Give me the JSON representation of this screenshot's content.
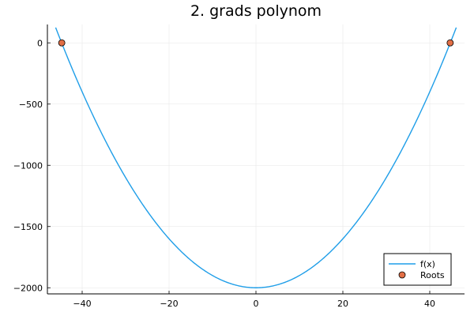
{
  "chart_data": {
    "type": "line",
    "title": "2. grads polynom",
    "xlabel": "",
    "ylabel": "",
    "xlim": [
      -48,
      48
    ],
    "ylim": [
      -2050,
      150
    ],
    "grid": true,
    "legend_position": "bottom-right",
    "x_ticks": [
      -40,
      -20,
      0,
      20,
      40
    ],
    "x_tick_labels": [
      "−40",
      "−20",
      "0",
      "20",
      "40"
    ],
    "y_ticks": [
      0,
      -500,
      -1000,
      -1500,
      -2000
    ],
    "y_tick_labels": [
      "0",
      "−500",
      "−1000",
      "−1500",
      "−2000"
    ],
    "series": [
      {
        "name": "f(x)",
        "kind": "line",
        "color": "#1f9ee8",
        "function": "x^2 - 2000",
        "x_domain": [
          -46.1,
          46.1
        ]
      },
      {
        "name": "Roots",
        "kind": "scatter",
        "color": "#e26f46",
        "points": [
          {
            "x": -44.7,
            "y": 0
          },
          {
            "x": 44.7,
            "y": 0
          }
        ]
      }
    ]
  }
}
